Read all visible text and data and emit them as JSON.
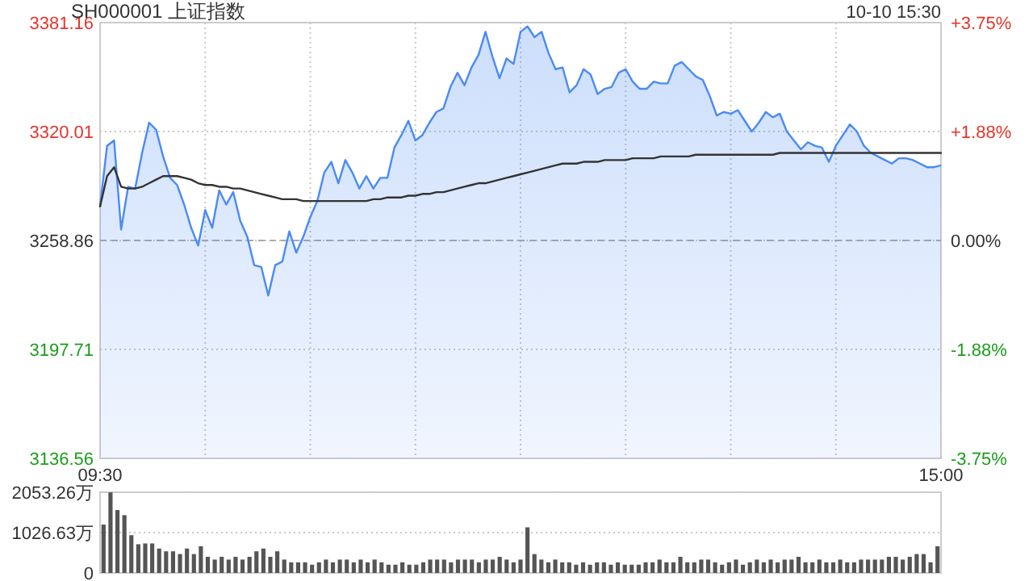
{
  "chart_data": [
    {
      "type": "area",
      "title": "SH000001 上证指数",
      "annotations": [
        "10-10 15:30"
      ],
      "categories": [
        "09:30",
        null,
        null,
        null,
        null,
        null,
        null,
        null,
        null,
        null,
        null,
        null,
        null,
        null,
        null,
        null,
        null,
        null,
        null,
        null,
        null,
        null,
        null,
        null,
        null,
        null,
        null,
        null,
        null,
        null,
        null,
        null,
        null,
        null,
        null,
        null,
        null,
        null,
        null,
        null,
        null,
        null,
        null,
        null,
        null,
        null,
        null,
        null,
        null,
        null,
        null,
        null,
        null,
        null,
        null,
        null,
        null,
        null,
        null,
        null,
        null,
        null,
        null,
        null,
        null,
        null,
        null,
        null,
        null,
        null,
        null,
        null,
        null,
        null,
        null,
        null,
        null,
        null,
        null,
        null,
        null,
        null,
        null,
        null,
        null,
        null,
        null,
        null,
        null,
        null,
        null,
        null,
        null,
        null,
        null,
        null,
        null,
        null,
        null,
        null,
        null,
        null,
        null,
        null,
        null,
        null,
        null,
        null,
        null,
        null,
        null,
        null,
        null,
        null,
        null,
        null,
        null,
        null,
        null,
        null,
        "15:00"
      ],
      "ylim": [
        3136.56,
        3381.16
      ],
      "yticks": [
        3136.56,
        3197.71,
        3258.86,
        3320.01,
        3381.16
      ],
      "y2lim": [
        -3.75,
        3.75
      ],
      "y2ticks": [
        {
          "value": -3.75,
          "label": "-3.75%"
        },
        {
          "value": -1.88,
          "label": "-1.88%"
        },
        {
          "value": 0,
          "label": "0.00%"
        },
        {
          "value": 1.88,
          "label": "+1.88%"
        },
        {
          "value": 3.75,
          "label": "+3.75%"
        }
      ],
      "grid": true,
      "ref_lines": [
        {
          "axis": "y",
          "value": 3258.86,
          "line_style": "dashed",
          "color": "#aaaaaa"
        }
      ],
      "series": [
        {
          "type": "area",
          "color": "#4a8af4",
          "values": [
            3278,
            3312,
            3315,
            3265,
            3289,
            3288,
            3308,
            3325,
            3321,
            3306,
            3294,
            3290,
            3279,
            3266,
            3256,
            3276,
            3266,
            3287,
            3279,
            3286,
            3270,
            3261,
            3245,
            3244,
            3228,
            3245,
            3247,
            3264,
            3252,
            3261,
            3272,
            3281,
            3297,
            3303,
            3291,
            3304,
            3297,
            3288,
            3295,
            3288,
            3294,
            3294,
            3311,
            3318,
            3326,
            3315,
            3318,
            3325,
            3331,
            3333,
            3345,
            3353,
            3346,
            3356,
            3363,
            3376,
            3362,
            3350,
            3361,
            3358,
            3376,
            3379,
            3373,
            3376,
            3364,
            3355,
            3356,
            3342,
            3346,
            3355,
            3352,
            3341,
            3344,
            3345,
            3353,
            3355,
            3348,
            3344,
            3344,
            3348,
            3347,
            3347,
            3357,
            3359,
            3355,
            3351,
            3349,
            3340,
            3329,
            3331,
            3330,
            3332,
            3326,
            3320,
            3325,
            3331,
            3328,
            3330,
            3320,
            3315,
            3310,
            3314,
            3312,
            3311,
            3303,
            3312,
            3318,
            3324,
            3320,
            3312,
            3308,
            3306,
            3304,
            3302,
            3305,
            3305,
            3304,
            3302,
            3300,
            3300,
            3301
          ]
        },
        {
          "type": "line",
          "color": "#333333",
          "values": [
            3278,
            3295,
            3300,
            3289,
            3288,
            3288,
            3289,
            3291,
            3293,
            3295,
            3295,
            3295,
            3294,
            3293,
            3291,
            3290,
            3290,
            3289,
            3289,
            3288,
            3288,
            3287,
            3286,
            3285,
            3284,
            3283,
            3282,
            3282,
            3282,
            3281,
            3281,
            3281,
            3281,
            3281,
            3281,
            3281,
            3281,
            3281,
            3281,
            3282,
            3282,
            3283,
            3283,
            3283,
            3284,
            3284,
            3285,
            3285,
            3286,
            3286,
            3287,
            3288,
            3289,
            3290,
            3291,
            3291,
            3292,
            3293,
            3294,
            3295,
            3296,
            3297,
            3298,
            3299,
            3300,
            3301,
            3302,
            3302,
            3302,
            3303,
            3303,
            3303,
            3304,
            3304,
            3304,
            3304,
            3305,
            3305,
            3305,
            3305,
            3306,
            3306,
            3306,
            3306,
            3306,
            3307,
            3307,
            3307,
            3307,
            3307,
            3307,
            3307,
            3307,
            3307,
            3307,
            3307,
            3307,
            3308,
            3308,
            3308,
            3308,
            3308,
            3308,
            3308,
            3308,
            3308,
            3308,
            3308,
            3308,
            3308,
            3308,
            3308,
            3308,
            3308,
            3308,
            3308,
            3308,
            3308,
            3308,
            3308,
            3308
          ]
        }
      ]
    },
    {
      "type": "bar",
      "color": "#555555",
      "categories": [
        null,
        null,
        null,
        null,
        null,
        null,
        null,
        null,
        null,
        null,
        null,
        null,
        null,
        null,
        null,
        null,
        null,
        null,
        null,
        null,
        null,
        null,
        null,
        null,
        null,
        null,
        null,
        null,
        null,
        null,
        null,
        null,
        null,
        null,
        null,
        null,
        null,
        null,
        null,
        null,
        null,
        null,
        null,
        null,
        null,
        null,
        null,
        null,
        null,
        null,
        null,
        null,
        null,
        null,
        null,
        null,
        null,
        null,
        null,
        null,
        null,
        null,
        null,
        null,
        null,
        null,
        null,
        null,
        null,
        null,
        null,
        null,
        null,
        null,
        null,
        null,
        null,
        null,
        null,
        null,
        null,
        null,
        null,
        null,
        null,
        null,
        null,
        null,
        null,
        null,
        null,
        null,
        null,
        null,
        null,
        null,
        null,
        null,
        null,
        null,
        null,
        null,
        null,
        null,
        null,
        null,
        null,
        null,
        null,
        null,
        null,
        null,
        null,
        null,
        null,
        null,
        null,
        null,
        null,
        null,
        null
      ],
      "values": [
        1230,
        2050,
        1600,
        1470,
        960,
        730,
        750,
        750,
        620,
        550,
        550,
        480,
        620,
        480,
        680,
        410,
        340,
        410,
        340,
        410,
        340,
        410,
        550,
        620,
        410,
        550,
        340,
        270,
        270,
        270,
        210,
        270,
        340,
        270,
        340,
        340,
        270,
        340,
        270,
        340,
        270,
        210,
        210,
        270,
        210,
        210,
        270,
        340,
        340,
        340,
        270,
        340,
        340,
        340,
        270,
        340,
        340,
        410,
        340,
        270,
        340,
        1160,
        480,
        340,
        270,
        340,
        270,
        270,
        210,
        270,
        210,
        270,
        270,
        210,
        270,
        210,
        210,
        210,
        270,
        270,
        340,
        270,
        270,
        410,
        270,
        270,
        340,
        340,
        270,
        210,
        270,
        340,
        210,
        270,
        340,
        270,
        340,
        270,
        340,
        340,
        410,
        270,
        270,
        340,
        270,
        270,
        340,
        270,
        270,
        340,
        340,
        340,
        340,
        410,
        410,
        340,
        410,
        480,
        480,
        270,
        680
      ],
      "ylim": [
        0,
        2053.26
      ],
      "yticks": [
        0,
        {
          "value": 1026.63,
          "label": "1026.63万"
        },
        {
          "value": 2053.26,
          "label": "2053.26万"
        }
      ],
      "grid": "y"
    }
  ]
}
